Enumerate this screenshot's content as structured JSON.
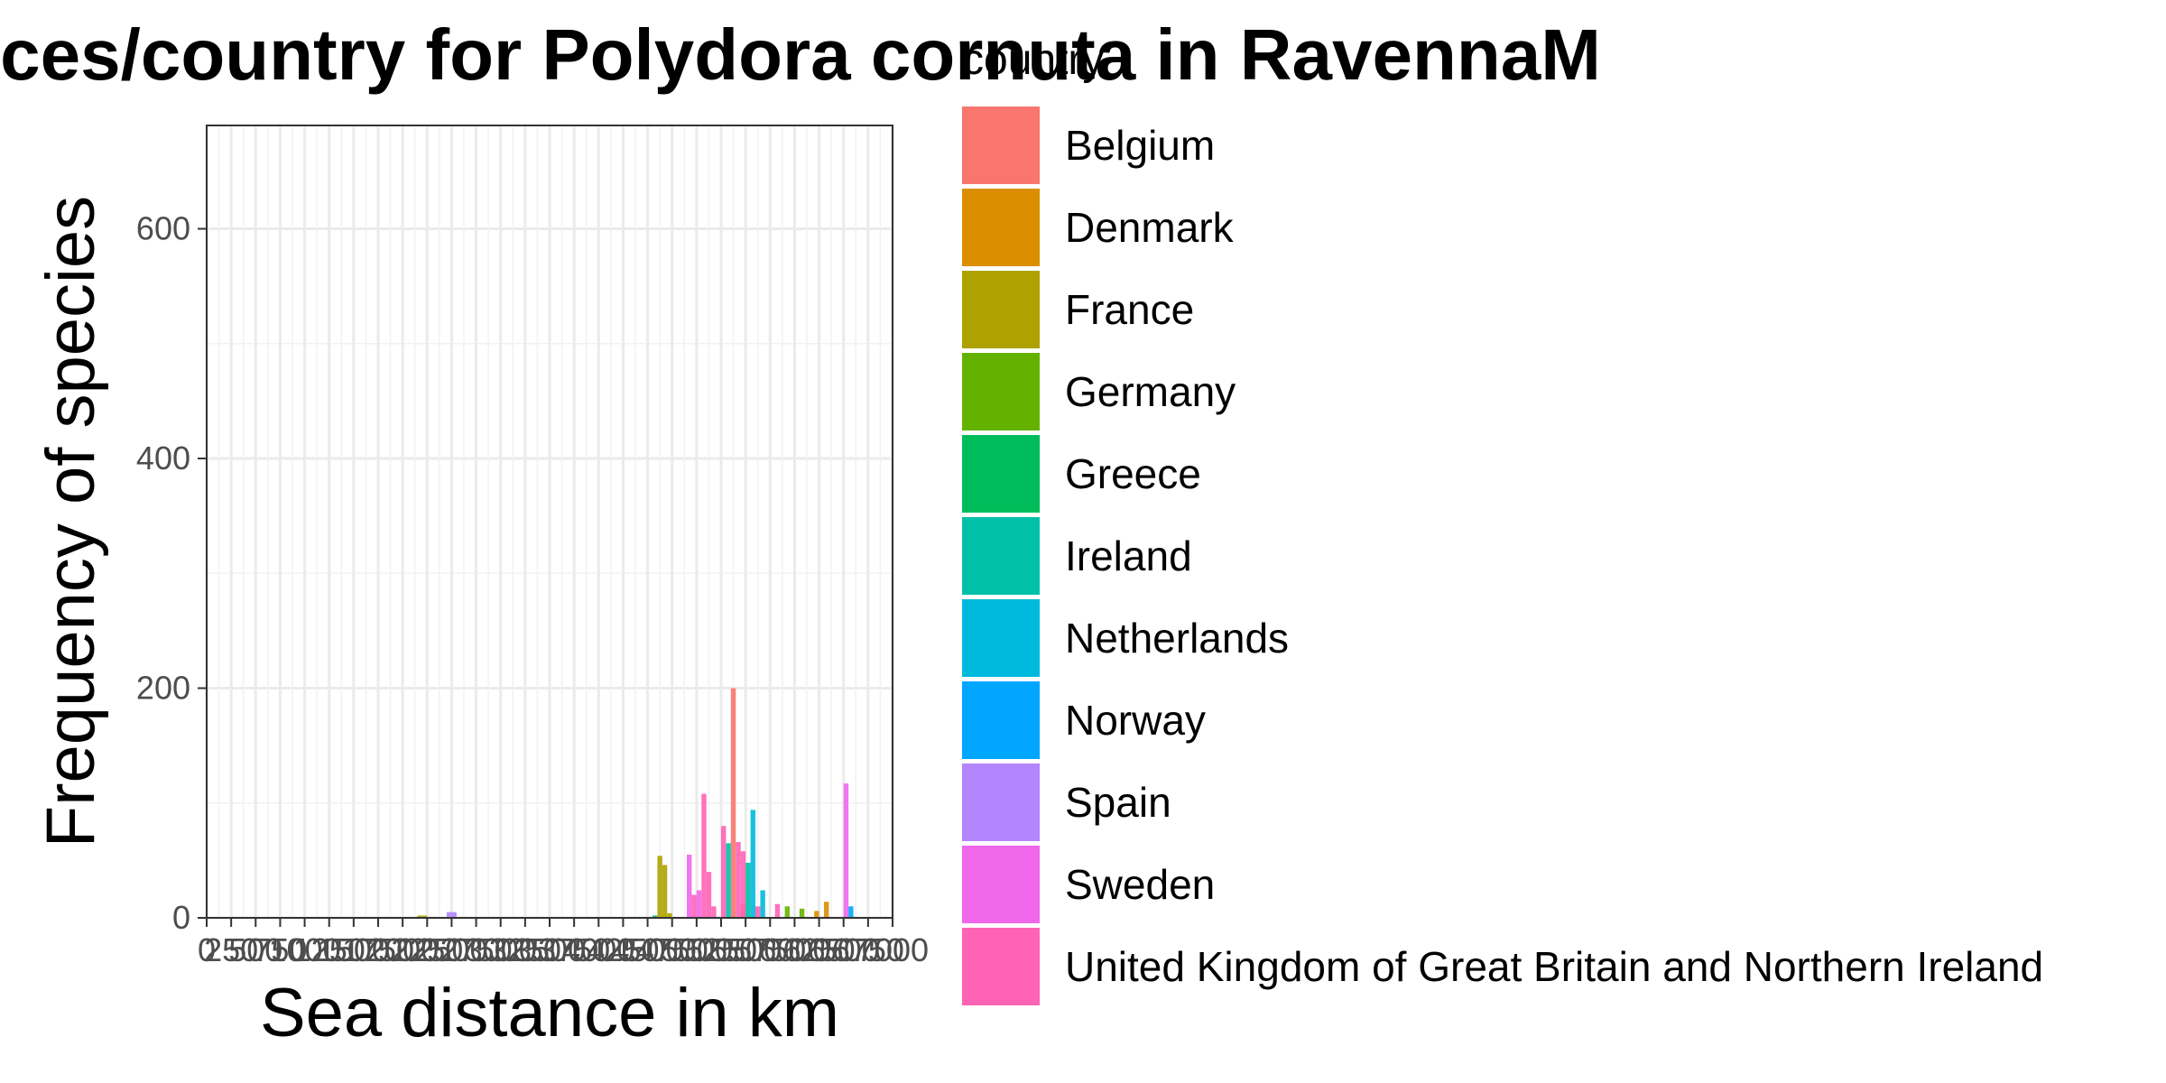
{
  "chart_data": {
    "type": "bar",
    "title": "Sea distances/country for Polydora cornuta in RavennaM",
    "xlabel": "Sea distance in km",
    "ylabel": "Frequency of species",
    "ylim": [
      0,
      690
    ],
    "xlim": [
      0,
      7000
    ],
    "y_ticks": [
      0,
      200,
      400,
      600
    ],
    "x_ticks": [
      0,
      250,
      500,
      750,
      1000,
      1250,
      1500,
      1750,
      2000,
      2250,
      2500,
      2750,
      3000,
      3250,
      3500,
      3750,
      4000,
      4250,
      4500,
      4750,
      5000,
      5250,
      5500,
      5750,
      6000,
      6250,
      6500,
      6750,
      7000
    ],
    "x_tick_labels": [
      "0",
      "250",
      "500",
      "750",
      "1000",
      "1250",
      "1500",
      "1750",
      "2000",
      "2250",
      "2500",
      "2750",
      "3000",
      "3250",
      "3500",
      "3750",
      "4000",
      "4250",
      "4500",
      "4750",
      "5000",
      "5250",
      "5500",
      "5750",
      "6000",
      "6250",
      "6500",
      "6750",
      "7000"
    ],
    "grid": true,
    "bin_width": 50,
    "legend_title": "country",
    "legend_position": "right",
    "series": [
      {
        "name": "Belgium",
        "color": "#F8766D",
        "x": [
          5375,
          5475
        ],
        "values": [
          200,
          12
        ]
      },
      {
        "name": "Denmark",
        "color": "#DB8E00",
        "x": [
          6225,
          6325
        ],
        "values": [
          6,
          14
        ]
      },
      {
        "name": "France",
        "color": "#AEA200",
        "x": [
          2175,
          2225,
          4625,
          4675,
          4725
        ],
        "values": [
          2,
          2,
          54,
          46,
          4
        ]
      },
      {
        "name": "Germany",
        "color": "#64B200",
        "x": [
          5925,
          6075
        ],
        "values": [
          10,
          8
        ]
      },
      {
        "name": "Greece",
        "color": "#00BD5C",
        "x": [
          4575
        ],
        "values": [
          2
        ]
      },
      {
        "name": "Ireland",
        "color": "#00C1A7",
        "x": [
          5325,
          5525
        ],
        "values": [
          65,
          48
        ]
      },
      {
        "name": "Netherlands",
        "color": "#00BADE",
        "x": [
          5575,
          5675
        ],
        "values": [
          94,
          24
        ]
      },
      {
        "name": "Norway",
        "color": "#00A6FF",
        "x": [
          6575
        ],
        "values": [
          10
        ]
      },
      {
        "name": "Spain",
        "color": "#B385FF",
        "x": [
          2475,
          2525
        ],
        "values": [
          5,
          5
        ]
      },
      {
        "name": "Sweden",
        "color": "#EF67EB",
        "x": [
          4925,
          5025,
          6525
        ],
        "values": [
          55,
          24,
          117
        ]
      },
      {
        "name": "United Kingdom of Great Britain and Northern Ireland",
        "color": "#FF63B6",
        "x": [
          4975,
          5075,
          5125,
          5175,
          5275,
          5425,
          5475,
          5625,
          5825
        ],
        "values": [
          20,
          108,
          40,
          10,
          80,
          66,
          58,
          10,
          12
        ]
      }
    ]
  }
}
